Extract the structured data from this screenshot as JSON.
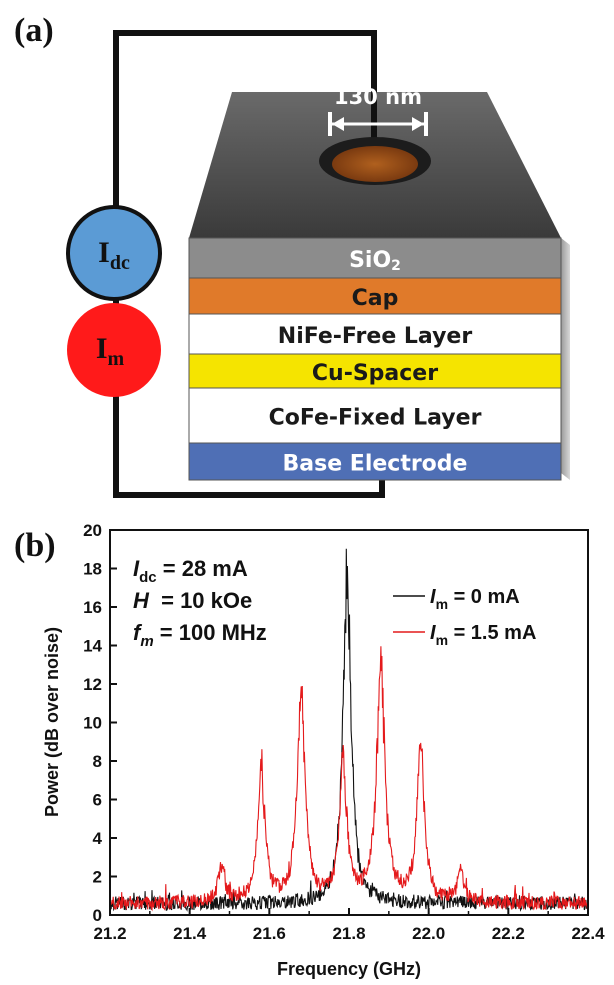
{
  "panels": {
    "a_label": "(a)",
    "b_label": "(b)"
  },
  "device": {
    "width_label": "130 nm",
    "sources": {
      "dc": {
        "main": "I",
        "sub": "dc",
        "color": "#5b9bd5"
      },
      "m": {
        "main": "I",
        "sub": "m",
        "color": "#ff1a1a"
      }
    },
    "layers": [
      {
        "label": "SiO",
        "sub": "2",
        "color": "#8c8c8c",
        "text_color": "#ffffff"
      },
      {
        "label": "Cap",
        "sub": "",
        "color": "#e07a2a",
        "text_color": "#1a1a1a"
      },
      {
        "label": "NiFe-Free Layer",
        "sub": "",
        "color": "#ffffff",
        "text_color": "#1a1a1a"
      },
      {
        "label": "Cu-Spacer",
        "sub": "",
        "color": "#f5e400",
        "text_color": "#1a1a1a"
      },
      {
        "label": "CoFe-Fixed Layer",
        "sub": "",
        "color": "#ffffff",
        "text_color": "#1a1a1a"
      },
      {
        "label": "Base Electrode",
        "sub": "",
        "color": "#4f6fb5",
        "text_color": "#ffffff"
      }
    ]
  },
  "params": [
    {
      "sym": "I",
      "sub": "dc",
      "rest": " = 28 mA"
    },
    {
      "sym": "H",
      "sub": "",
      "rest": "  = 10 kOe"
    },
    {
      "sym": "f",
      "sub": "m",
      "rest": " = 100 MHz"
    }
  ],
  "chart_data": {
    "type": "line",
    "xlabel": "Frequency (GHz)",
    "ylabel": "Power (dB over noise)",
    "xlim": [
      21.2,
      22.4
    ],
    "ylim": [
      0,
      20
    ],
    "xticks": [
      "21.2",
      "21.4",
      "21.6",
      "21.8",
      "22.0",
      "22.2",
      "22.4"
    ],
    "yticks": [
      "0",
      "2",
      "4",
      "6",
      "8",
      "10",
      "12",
      "14",
      "16",
      "18",
      "20"
    ],
    "legend_position": "right",
    "series": [
      {
        "name": "I_m = 0 mA",
        "legend_sym": "I",
        "legend_sub": "m",
        "legend_rest": " = 0 mA",
        "color": "#111111",
        "baseline": 0.6,
        "peaks": [
          {
            "x": 21.795,
            "y": 17.5,
            "w": 0.012
          }
        ]
      },
      {
        "name": "I_m = 1.5 mA",
        "legend_sym": "I",
        "legend_sub": "m",
        "legend_rest": " = 1.5 mA",
        "color": "#e41a1c",
        "baseline": 0.6,
        "peaks": [
          {
            "x": 21.48,
            "y": 2.0,
            "w": 0.01
          },
          {
            "x": 21.58,
            "y": 7.0,
            "w": 0.011
          },
          {
            "x": 21.68,
            "y": 10.7,
            "w": 0.012
          },
          {
            "x": 21.785,
            "y": 7.3,
            "w": 0.011
          },
          {
            "x": 21.88,
            "y": 12.0,
            "w": 0.013
          },
          {
            "x": 21.98,
            "y": 8.3,
            "w": 0.011
          },
          {
            "x": 22.08,
            "y": 1.8,
            "w": 0.009
          }
        ]
      }
    ]
  }
}
